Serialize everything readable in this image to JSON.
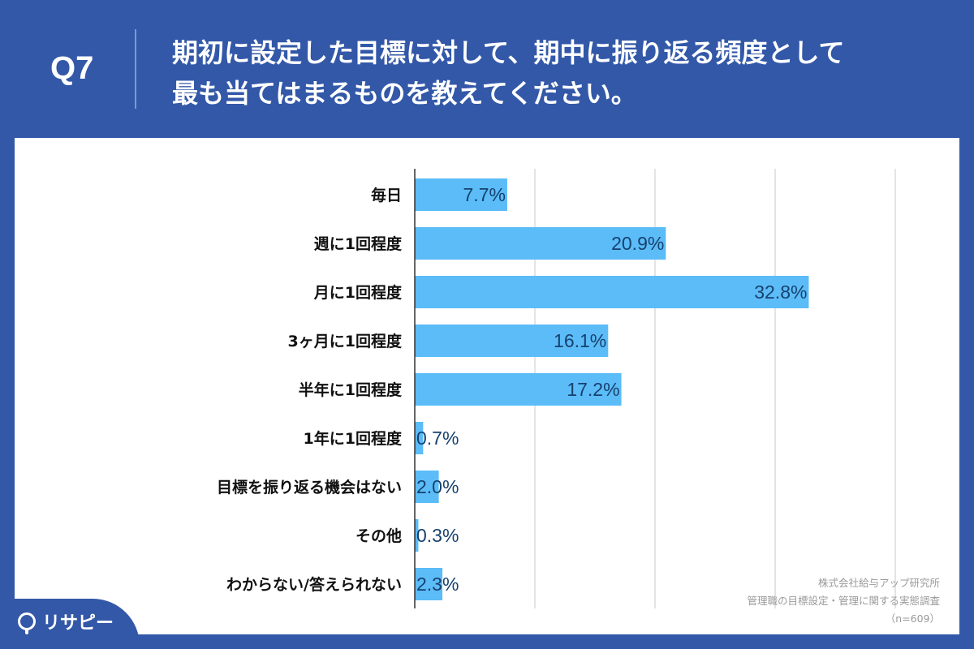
{
  "header": {
    "question_number": "Q7",
    "question_line1": "期初に設定した目標に対して、期中に振り返る頻度として",
    "question_line2": "最も当てはまるものを教えてください。"
  },
  "source": {
    "company": "株式会社給与アップ研究所",
    "survey": "管理職の目標設定・管理に関する実態調査",
    "sample": "（n=609）"
  },
  "brand": {
    "logo_text": "リサピー"
  },
  "colors": {
    "bar": "#5bbcf8",
    "label": "#17416e",
    "background": "#3358a8"
  },
  "chart_data": {
    "type": "bar",
    "orientation": "horizontal",
    "categories": [
      "毎日",
      "週に1回程度",
      "月に1回程度",
      "3ヶ月に1回程度",
      "半年に1回程度",
      "1年に1回程度",
      "目標を振り返る機会はない",
      "その他",
      "わからない/答えられない"
    ],
    "values": [
      7.7,
      20.9,
      32.8,
      16.1,
      17.2,
      0.7,
      2.0,
      0.3,
      2.3
    ],
    "value_labels": [
      "7.7%",
      "20.9%",
      "32.8%",
      "16.1%",
      "17.2%",
      "0.7%",
      "2.0%",
      "0.3%",
      "2.3%"
    ],
    "xlim": [
      0,
      40
    ],
    "gridlines": [
      10,
      20,
      30,
      40
    ],
    "grid": true,
    "title": "",
    "xlabel": "",
    "ylabel": ""
  }
}
